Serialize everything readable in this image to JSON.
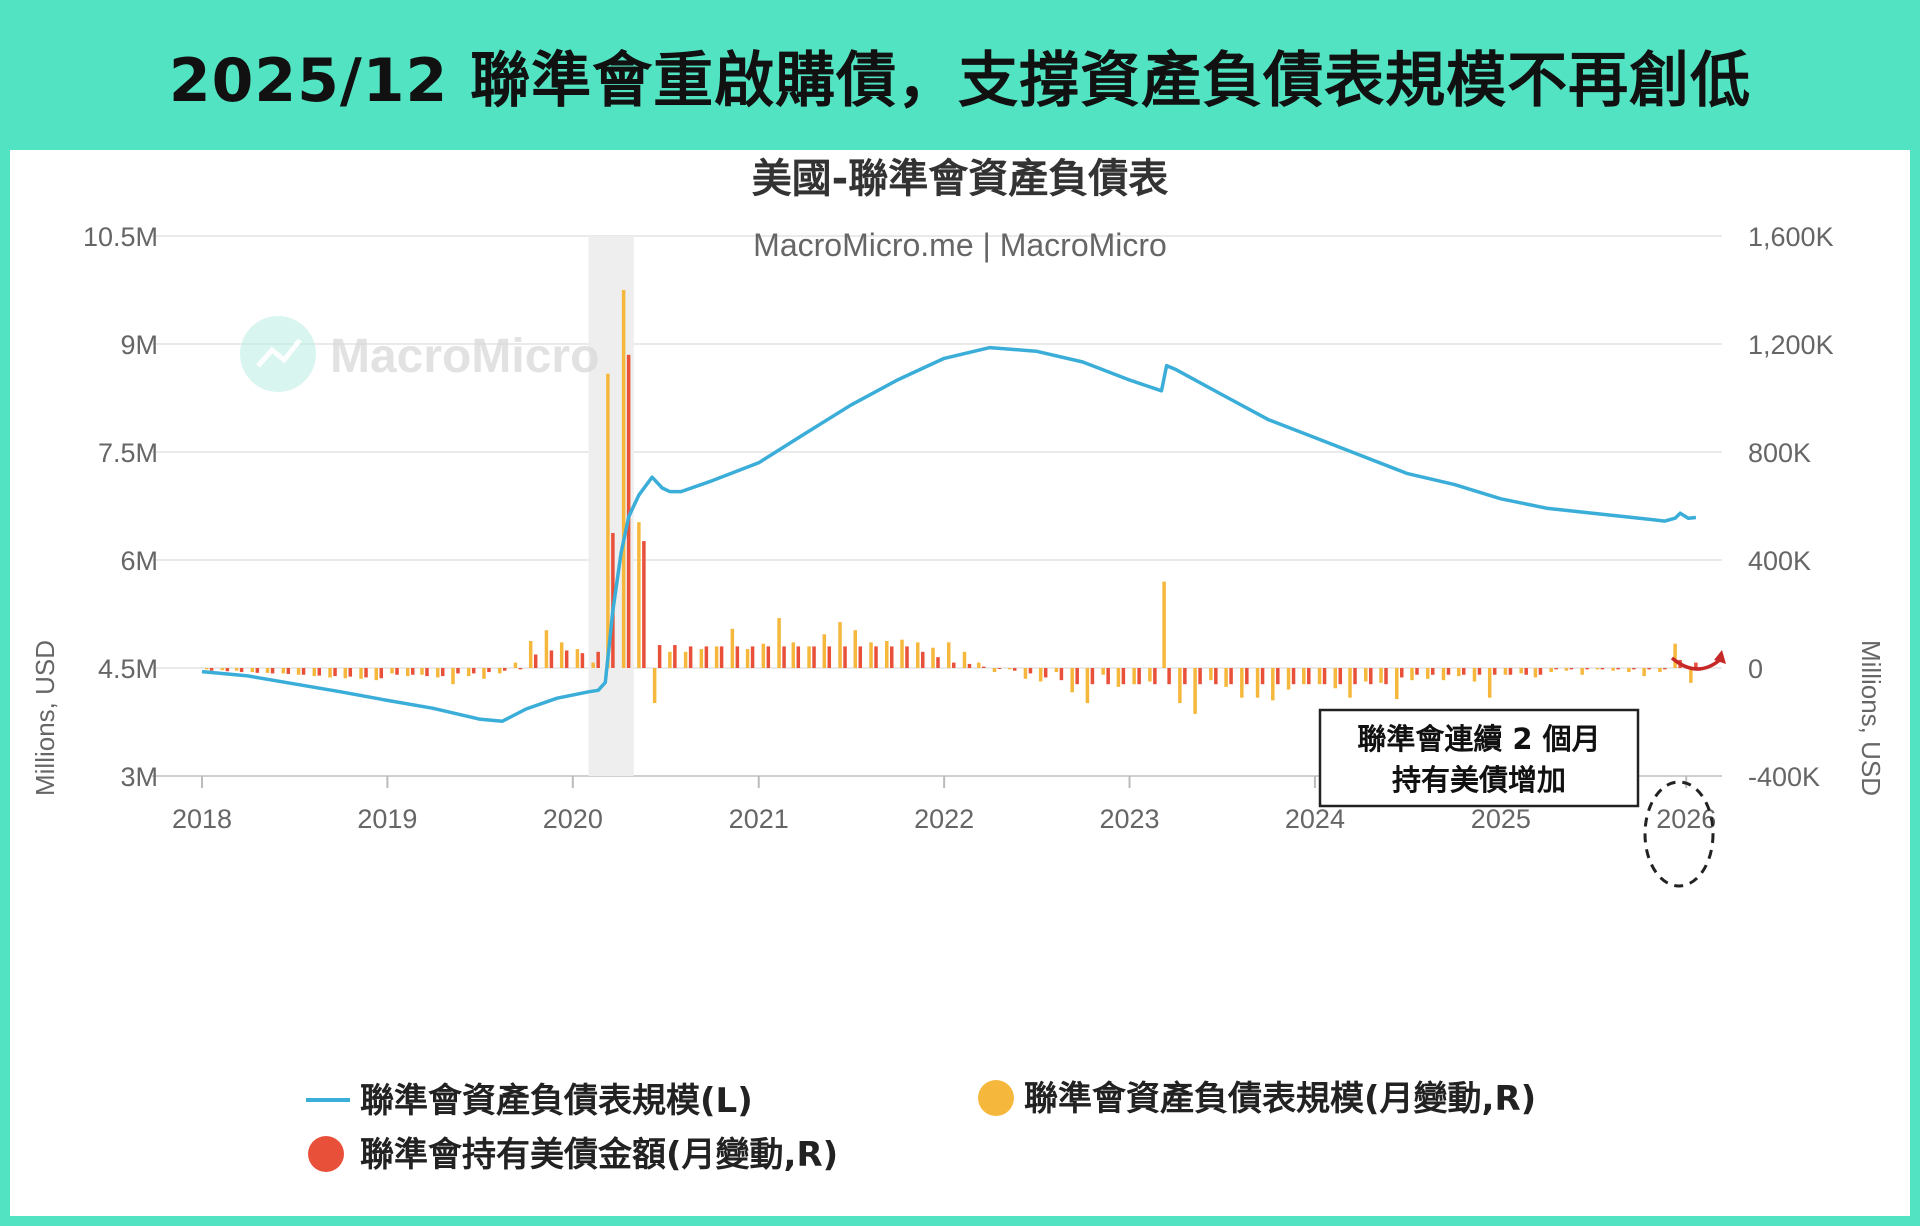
{
  "page": {
    "headline": "2025/12 聯準會重啟購債，支撐資產負債表規模不再創低"
  },
  "watermark": "MacroMicro",
  "annotation": {
    "lines": [
      "聯準會連續 2 個月",
      "持有美債增加"
    ]
  },
  "colors": {
    "background": "#52e3c2",
    "balance_line": "#3aaed8",
    "balance_change_bar": "#f5b83d",
    "treasury_change_bar": "#e8503a",
    "recession_shade": "#eeeeee",
    "arrow": "#c62828"
  },
  "chart_data": {
    "type": "combo",
    "title": "美國-聯準會資產負債表",
    "subtitle": "MacroMicro.me | MacroMicro",
    "ylabel_left": "Millions, USD",
    "ylabel_right": "Millions, USD",
    "ylim_left": [
      3000000,
      10500000
    ],
    "ylim_right": [
      -400000,
      1600000
    ],
    "left_ticks": [
      "3M",
      "4.5M",
      "6M",
      "7.5M",
      "9M",
      "10.5M"
    ],
    "right_ticks": [
      "-400K",
      "0",
      "400K",
      "800K",
      "1,200K",
      "1,600K"
    ],
    "x_ticks": [
      "2018",
      "2019",
      "2020",
      "2021",
      "2022",
      "2023",
      "2024",
      "2025",
      "2026"
    ],
    "xlim": [
      "2018-01-01",
      "2026-02-01"
    ],
    "grid": true,
    "recession_shading": [
      "2020-02-01",
      "2020-04-30"
    ],
    "legend": [
      {
        "label": "聯準會資產負債表規模(L)",
        "marker": "line",
        "color": "#3aaed8"
      },
      {
        "label": "聯準會資產負債表規模(月變動,R)",
        "marker": "circle",
        "color": "#f5b83d"
      },
      {
        "label": "聯準會持有美債金額(月變動,R)",
        "marker": "circle",
        "color": "#e8503a"
      }
    ],
    "series": [
      {
        "name": "聯準會資產負債表規模(L)",
        "axis": "left",
        "type": "line",
        "points": [
          [
            "2018-01-01",
            4450000
          ],
          [
            "2018-04-01",
            4390000
          ],
          [
            "2018-07-01",
            4280000
          ],
          [
            "2018-10-01",
            4170000
          ],
          [
            "2019-01-01",
            4050000
          ],
          [
            "2019-04-01",
            3940000
          ],
          [
            "2019-07-01",
            3790000
          ],
          [
            "2019-08-15",
            3760000
          ],
          [
            "2019-10-01",
            3930000
          ],
          [
            "2019-12-01",
            4080000
          ],
          [
            "2020-02-01",
            4170000
          ],
          [
            "2020-02-20",
            4190000
          ],
          [
            "2020-03-05",
            4300000
          ],
          [
            "2020-03-20",
            5300000
          ],
          [
            "2020-04-05",
            6100000
          ],
          [
            "2020-04-20",
            6600000
          ],
          [
            "2020-05-10",
            6900000
          ],
          [
            "2020-06-05",
            7150000
          ],
          [
            "2020-06-25",
            7000000
          ],
          [
            "2020-07-10",
            6950000
          ],
          [
            "2020-08-01",
            6950000
          ],
          [
            "2020-10-01",
            7100000
          ],
          [
            "2021-01-01",
            7350000
          ],
          [
            "2021-04-01",
            7750000
          ],
          [
            "2021-07-01",
            8150000
          ],
          [
            "2021-10-01",
            8500000
          ],
          [
            "2022-01-01",
            8800000
          ],
          [
            "2022-04-01",
            8950000
          ],
          [
            "2022-07-01",
            8900000
          ],
          [
            "2022-10-01",
            8750000
          ],
          [
            "2023-01-01",
            8500000
          ],
          [
            "2023-03-05",
            8350000
          ],
          [
            "2023-03-15",
            8700000
          ],
          [
            "2023-04-01",
            8650000
          ],
          [
            "2023-07-01",
            8300000
          ],
          [
            "2023-10-01",
            7950000
          ],
          [
            "2024-01-01",
            7700000
          ],
          [
            "2024-04-01",
            7450000
          ],
          [
            "2024-07-01",
            7200000
          ],
          [
            "2024-10-01",
            7050000
          ],
          [
            "2025-01-01",
            6850000
          ],
          [
            "2025-04-01",
            6720000
          ],
          [
            "2025-07-01",
            6650000
          ],
          [
            "2025-10-01",
            6580000
          ],
          [
            "2025-11-20",
            6540000
          ],
          [
            "2025-12-10",
            6580000
          ],
          [
            "2025-12-20",
            6650000
          ],
          [
            "2026-01-05",
            6580000
          ],
          [
            "2026-01-20",
            6590000
          ]
        ]
      },
      {
        "name": "聯準會資產負債表規模(月變動,R)",
        "axis": "right",
        "type": "bar",
        "months": [
          "2018-01",
          "2018-02",
          "2018-03",
          "2018-04",
          "2018-05",
          "2018-06",
          "2018-07",
          "2018-08",
          "2018-09",
          "2018-10",
          "2018-11",
          "2018-12",
          "2019-01",
          "2019-02",
          "2019-03",
          "2019-04",
          "2019-05",
          "2019-06",
          "2019-07",
          "2019-08",
          "2019-09",
          "2019-10",
          "2019-11",
          "2019-12",
          "2020-01",
          "2020-02",
          "2020-03",
          "2020-04",
          "2020-05",
          "2020-06",
          "2020-07",
          "2020-08",
          "2020-09",
          "2020-10",
          "2020-11",
          "2020-12",
          "2021-01",
          "2021-02",
          "2021-03",
          "2021-04",
          "2021-05",
          "2021-06",
          "2021-07",
          "2021-08",
          "2021-09",
          "2021-10",
          "2021-11",
          "2021-12",
          "2022-01",
          "2022-02",
          "2022-03",
          "2022-04",
          "2022-05",
          "2022-06",
          "2022-07",
          "2022-08",
          "2022-09",
          "2022-10",
          "2022-11",
          "2022-12",
          "2023-01",
          "2023-02",
          "2023-03",
          "2023-04",
          "2023-05",
          "2023-06",
          "2023-07",
          "2023-08",
          "2023-09",
          "2023-10",
          "2023-11",
          "2023-12",
          "2024-01",
          "2024-02",
          "2024-03",
          "2024-04",
          "2024-05",
          "2024-06",
          "2024-07",
          "2024-08",
          "2024-09",
          "2024-10",
          "2024-11",
          "2024-12",
          "2025-01",
          "2025-02",
          "2025-03",
          "2025-04",
          "2025-05",
          "2025-06",
          "2025-07",
          "2025-08",
          "2025-09",
          "2025-10",
          "2025-11",
          "2025-12",
          "2026-01"
        ],
        "values": [
          -5000,
          -8000,
          -10000,
          -15000,
          -18000,
          -20000,
          -25000,
          -30000,
          -35000,
          -38000,
          -40000,
          -45000,
          -20000,
          -30000,
          -25000,
          -35000,
          -60000,
          -30000,
          -40000,
          -20000,
          20000,
          100000,
          140000,
          95000,
          70000,
          20000,
          1090000,
          1400000,
          540000,
          -130000,
          60000,
          60000,
          70000,
          80000,
          145000,
          70000,
          90000,
          185000,
          95000,
          80000,
          125000,
          170000,
          140000,
          95000,
          100000,
          105000,
          95000,
          75000,
          95000,
          60000,
          20000,
          -15000,
          -5000,
          -40000,
          -50000,
          -15000,
          -90000,
          -130000,
          -25000,
          -70000,
          -60000,
          -50000,
          320000,
          -130000,
          -170000,
          -45000,
          -70000,
          -110000,
          -110000,
          -120000,
          -80000,
          -60000,
          -60000,
          -75000,
          -110000,
          -50000,
          -55000,
          -115000,
          -45000,
          -40000,
          -45000,
          -30000,
          -50000,
          -110000,
          -25000,
          -20000,
          -35000,
          -15000,
          -10000,
          -25000,
          -5000,
          -10000,
          -15000,
          -30000,
          -15000,
          90000,
          -55000
        ]
      },
      {
        "name": "聯準會持有美債金額(月變動,R)",
        "axis": "right",
        "type": "bar",
        "months": [
          "2018-01",
          "2018-02",
          "2018-03",
          "2018-04",
          "2018-05",
          "2018-06",
          "2018-07",
          "2018-08",
          "2018-09",
          "2018-10",
          "2018-11",
          "2018-12",
          "2019-01",
          "2019-02",
          "2019-03",
          "2019-04",
          "2019-05",
          "2019-06",
          "2019-07",
          "2019-08",
          "2019-09",
          "2019-10",
          "2019-11",
          "2019-12",
          "2020-01",
          "2020-02",
          "2020-03",
          "2020-04",
          "2020-05",
          "2020-06",
          "2020-07",
          "2020-08",
          "2020-09",
          "2020-10",
          "2020-11",
          "2020-12",
          "2021-01",
          "2021-02",
          "2021-03",
          "2021-04",
          "2021-05",
          "2021-06",
          "2021-07",
          "2021-08",
          "2021-09",
          "2021-10",
          "2021-11",
          "2021-12",
          "2022-01",
          "2022-02",
          "2022-03",
          "2022-04",
          "2022-05",
          "2022-06",
          "2022-07",
          "2022-08",
          "2022-09",
          "2022-10",
          "2022-11",
          "2022-12",
          "2023-01",
          "2023-02",
          "2023-03",
          "2023-04",
          "2023-05",
          "2023-06",
          "2023-07",
          "2023-08",
          "2023-09",
          "2023-10",
          "2023-11",
          "2023-12",
          "2024-01",
          "2024-02",
          "2024-03",
          "2024-04",
          "2024-05",
          "2024-06",
          "2024-07",
          "2024-08",
          "2024-09",
          "2024-10",
          "2024-11",
          "2024-12",
          "2025-01",
          "2025-02",
          "2025-03",
          "2025-04",
          "2025-05",
          "2025-06",
          "2025-07",
          "2025-08",
          "2025-09",
          "2025-10",
          "2025-11",
          "2025-12",
          "2026-01"
        ],
        "values": [
          -10000,
          -12000,
          -15000,
          -18000,
          -20000,
          -22000,
          -25000,
          -28000,
          -30000,
          -32000,
          -35000,
          -38000,
          -25000,
          -25000,
          -30000,
          -30000,
          -20000,
          -20000,
          -15000,
          -10000,
          -5000,
          50000,
          65000,
          65000,
          55000,
          60000,
          500000,
          1160000,
          470000,
          85000,
          85000,
          80000,
          80000,
          80000,
          80000,
          80000,
          80000,
          80000,
          80000,
          80000,
          80000,
          80000,
          80000,
          80000,
          80000,
          80000,
          60000,
          40000,
          20000,
          15000,
          5000,
          -2000,
          -10000,
          -20000,
          -35000,
          -45000,
          -60000,
          -60000,
          -60000,
          -60000,
          -60000,
          -60000,
          -60000,
          -60000,
          -60000,
          -60000,
          -60000,
          -60000,
          -60000,
          -60000,
          -60000,
          -60000,
          -60000,
          -60000,
          -60000,
          -60000,
          -60000,
          -35000,
          -25000,
          -25000,
          -25000,
          -25000,
          -25000,
          -25000,
          -25000,
          -25000,
          -25000,
          -5000,
          -5000,
          -5000,
          -5000,
          -5000,
          -5000,
          -5000,
          -5000,
          30000,
          20000
        ]
      }
    ]
  }
}
